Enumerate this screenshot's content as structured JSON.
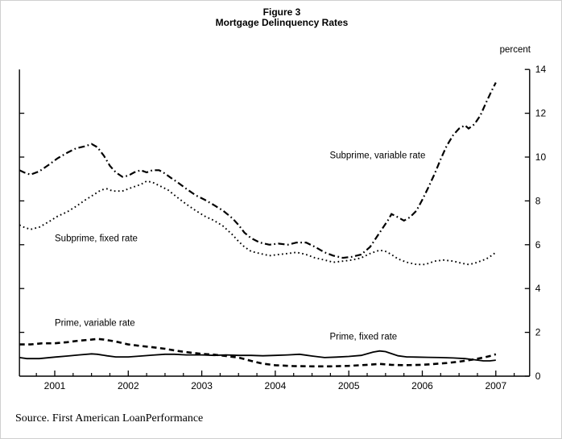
{
  "figure": {
    "title_line1": "Figure 3",
    "title_line2": "Mortgage Delinquency Rates",
    "unit_label": "percent",
    "source_note": "Source. First American LoanPerformance"
  },
  "chart_data": {
    "type": "line",
    "title": "Mortgage Delinquency Rates",
    "ylabel": "percent",
    "ylim": [
      0,
      14
    ],
    "yticks": [
      0,
      2,
      4,
      6,
      8,
      10,
      12,
      14
    ],
    "ytick_label_side": "right",
    "xlim": [
      2000.52,
      2007.46
    ],
    "xticks_years": [
      2001,
      2002,
      2003,
      2004,
      2005,
      2006,
      2007
    ],
    "xtick_minor_interval_years": 0.25,
    "grid": false,
    "legend_position": "inline-annotations",
    "colors": {
      "line": "#000000",
      "text": "#000000",
      "background": "#ffffff"
    },
    "series": [
      {
        "name": "Subprime, variable rate",
        "line_style": "dash-dot",
        "color": "#000000",
        "points": [
          [
            2000.52,
            9.4
          ],
          [
            2000.58,
            9.3
          ],
          [
            2000.67,
            9.2
          ],
          [
            2000.79,
            9.35
          ],
          [
            2000.92,
            9.65
          ],
          [
            2001.04,
            9.95
          ],
          [
            2001.17,
            10.2
          ],
          [
            2001.29,
            10.4
          ],
          [
            2001.42,
            10.5
          ],
          [
            2001.5,
            10.6
          ],
          [
            2001.58,
            10.45
          ],
          [
            2001.67,
            10.05
          ],
          [
            2001.75,
            9.6
          ],
          [
            2001.83,
            9.3
          ],
          [
            2001.92,
            9.1
          ],
          [
            2002.0,
            9.15
          ],
          [
            2002.08,
            9.3
          ],
          [
            2002.17,
            9.4
          ],
          [
            2002.25,
            9.3
          ],
          [
            2002.33,
            9.4
          ],
          [
            2002.42,
            9.4
          ],
          [
            2002.5,
            9.25
          ],
          [
            2002.58,
            9.05
          ],
          [
            2002.67,
            8.85
          ],
          [
            2002.79,
            8.55
          ],
          [
            2002.92,
            8.25
          ],
          [
            2003.04,
            8.05
          ],
          [
            2003.17,
            7.8
          ],
          [
            2003.29,
            7.55
          ],
          [
            2003.42,
            7.2
          ],
          [
            2003.5,
            6.9
          ],
          [
            2003.58,
            6.55
          ],
          [
            2003.67,
            6.3
          ],
          [
            2003.79,
            6.1
          ],
          [
            2003.92,
            6.0
          ],
          [
            2004.04,
            6.05
          ],
          [
            2004.17,
            6.0
          ],
          [
            2004.29,
            6.1
          ],
          [
            2004.42,
            6.1
          ],
          [
            2004.54,
            5.9
          ],
          [
            2004.67,
            5.65
          ],
          [
            2004.79,
            5.5
          ],
          [
            2004.92,
            5.4
          ],
          [
            2005.04,
            5.45
          ],
          [
            2005.17,
            5.55
          ],
          [
            2005.29,
            5.9
          ],
          [
            2005.42,
            6.55
          ],
          [
            2005.54,
            7.15
          ],
          [
            2005.58,
            7.4
          ],
          [
            2005.67,
            7.25
          ],
          [
            2005.75,
            7.1
          ],
          [
            2005.83,
            7.25
          ],
          [
            2005.92,
            7.55
          ],
          [
            2006.0,
            8.05
          ],
          [
            2006.08,
            8.6
          ],
          [
            2006.17,
            9.25
          ],
          [
            2006.25,
            9.9
          ],
          [
            2006.33,
            10.5
          ],
          [
            2006.42,
            11.0
          ],
          [
            2006.5,
            11.3
          ],
          [
            2006.58,
            11.45
          ],
          [
            2006.63,
            11.3
          ],
          [
            2006.71,
            11.5
          ],
          [
            2006.79,
            11.9
          ],
          [
            2006.87,
            12.5
          ],
          [
            2006.94,
            13.0
          ],
          [
            2007.0,
            13.4
          ]
        ]
      },
      {
        "name": "Subprime, fixed rate",
        "line_style": "dotted",
        "color": "#000000",
        "points": [
          [
            2000.52,
            6.9
          ],
          [
            2000.58,
            6.8
          ],
          [
            2000.67,
            6.7
          ],
          [
            2000.79,
            6.8
          ],
          [
            2000.92,
            7.05
          ],
          [
            2001.04,
            7.3
          ],
          [
            2001.17,
            7.5
          ],
          [
            2001.29,
            7.75
          ],
          [
            2001.42,
            8.05
          ],
          [
            2001.54,
            8.3
          ],
          [
            2001.63,
            8.5
          ],
          [
            2001.71,
            8.55
          ],
          [
            2001.79,
            8.45
          ],
          [
            2001.92,
            8.45
          ],
          [
            2002.04,
            8.6
          ],
          [
            2002.17,
            8.75
          ],
          [
            2002.25,
            8.9
          ],
          [
            2002.33,
            8.85
          ],
          [
            2002.42,
            8.7
          ],
          [
            2002.54,
            8.5
          ],
          [
            2002.67,
            8.15
          ],
          [
            2002.79,
            7.85
          ],
          [
            2002.92,
            7.55
          ],
          [
            2003.04,
            7.3
          ],
          [
            2003.17,
            7.1
          ],
          [
            2003.29,
            6.85
          ],
          [
            2003.42,
            6.45
          ],
          [
            2003.5,
            6.15
          ],
          [
            2003.58,
            5.9
          ],
          [
            2003.67,
            5.7
          ],
          [
            2003.79,
            5.6
          ],
          [
            2003.92,
            5.5
          ],
          [
            2004.04,
            5.55
          ],
          [
            2004.17,
            5.6
          ],
          [
            2004.29,
            5.65
          ],
          [
            2004.42,
            5.55
          ],
          [
            2004.54,
            5.4
          ],
          [
            2004.67,
            5.3
          ],
          [
            2004.79,
            5.2
          ],
          [
            2004.92,
            5.25
          ],
          [
            2005.04,
            5.3
          ],
          [
            2005.17,
            5.4
          ],
          [
            2005.29,
            5.6
          ],
          [
            2005.42,
            5.75
          ],
          [
            2005.5,
            5.7
          ],
          [
            2005.58,
            5.55
          ],
          [
            2005.67,
            5.35
          ],
          [
            2005.79,
            5.2
          ],
          [
            2005.92,
            5.1
          ],
          [
            2006.04,
            5.1
          ],
          [
            2006.17,
            5.25
          ],
          [
            2006.29,
            5.3
          ],
          [
            2006.42,
            5.25
          ],
          [
            2006.54,
            5.15
          ],
          [
            2006.63,
            5.1
          ],
          [
            2006.71,
            5.15
          ],
          [
            2006.79,
            5.25
          ],
          [
            2006.87,
            5.35
          ],
          [
            2006.94,
            5.5
          ],
          [
            2007.0,
            5.65
          ]
        ]
      },
      {
        "name": "Prime, variable rate",
        "line_style": "dashed",
        "color": "#000000",
        "points": [
          [
            2000.52,
            1.45
          ],
          [
            2000.67,
            1.45
          ],
          [
            2000.83,
            1.5
          ],
          [
            2001.0,
            1.5
          ],
          [
            2001.17,
            1.55
          ],
          [
            2001.33,
            1.62
          ],
          [
            2001.5,
            1.67
          ],
          [
            2001.58,
            1.7
          ],
          [
            2001.67,
            1.67
          ],
          [
            2001.83,
            1.58
          ],
          [
            2002.0,
            1.45
          ],
          [
            2002.17,
            1.38
          ],
          [
            2002.33,
            1.32
          ],
          [
            2002.5,
            1.25
          ],
          [
            2002.67,
            1.15
          ],
          [
            2002.83,
            1.08
          ],
          [
            2003.0,
            1.02
          ],
          [
            2003.17,
            0.98
          ],
          [
            2003.33,
            0.92
          ],
          [
            2003.5,
            0.85
          ],
          [
            2003.67,
            0.7
          ],
          [
            2003.83,
            0.57
          ],
          [
            2004.0,
            0.5
          ],
          [
            2004.25,
            0.46
          ],
          [
            2004.5,
            0.45
          ],
          [
            2004.75,
            0.45
          ],
          [
            2005.0,
            0.47
          ],
          [
            2005.25,
            0.52
          ],
          [
            2005.42,
            0.56
          ],
          [
            2005.58,
            0.52
          ],
          [
            2005.75,
            0.5
          ],
          [
            2006.0,
            0.52
          ],
          [
            2006.17,
            0.56
          ],
          [
            2006.33,
            0.6
          ],
          [
            2006.5,
            0.66
          ],
          [
            2006.67,
            0.75
          ],
          [
            2006.83,
            0.85
          ],
          [
            2006.92,
            0.92
          ],
          [
            2007.0,
            1.0
          ]
        ]
      },
      {
        "name": "Prime, fixed rate",
        "line_style": "solid",
        "color": "#000000",
        "points": [
          [
            2000.52,
            0.85
          ],
          [
            2000.62,
            0.8
          ],
          [
            2000.79,
            0.8
          ],
          [
            2001.0,
            0.87
          ],
          [
            2001.17,
            0.92
          ],
          [
            2001.33,
            0.97
          ],
          [
            2001.5,
            1.02
          ],
          [
            2001.58,
            1.0
          ],
          [
            2001.71,
            0.93
          ],
          [
            2001.83,
            0.88
          ],
          [
            2002.0,
            0.88
          ],
          [
            2002.17,
            0.92
          ],
          [
            2002.33,
            0.96
          ],
          [
            2002.5,
            1.0
          ],
          [
            2002.63,
            1.0
          ],
          [
            2002.79,
            0.97
          ],
          [
            2003.0,
            0.97
          ],
          [
            2003.17,
            0.95
          ],
          [
            2003.33,
            0.97
          ],
          [
            2003.5,
            0.95
          ],
          [
            2003.67,
            0.95
          ],
          [
            2003.83,
            0.93
          ],
          [
            2004.0,
            0.95
          ],
          [
            2004.17,
            0.97
          ],
          [
            2004.33,
            1.0
          ],
          [
            2004.5,
            0.92
          ],
          [
            2004.67,
            0.85
          ],
          [
            2004.83,
            0.87
          ],
          [
            2005.0,
            0.9
          ],
          [
            2005.17,
            0.95
          ],
          [
            2005.33,
            1.1
          ],
          [
            2005.42,
            1.15
          ],
          [
            2005.5,
            1.12
          ],
          [
            2005.58,
            1.03
          ],
          [
            2005.67,
            0.93
          ],
          [
            2005.79,
            0.88
          ],
          [
            2005.92,
            0.87
          ],
          [
            2006.08,
            0.86
          ],
          [
            2006.25,
            0.85
          ],
          [
            2006.42,
            0.83
          ],
          [
            2006.58,
            0.8
          ],
          [
            2006.71,
            0.75
          ],
          [
            2006.83,
            0.7
          ],
          [
            2006.92,
            0.7
          ],
          [
            2007.0,
            0.73
          ]
        ]
      }
    ],
    "annotations": [
      {
        "text": "Subprime, variable rate",
        "x": 2004.74,
        "y": 10.1
      },
      {
        "text": "Subprime, fixed rate",
        "x": 2001.0,
        "y": 6.3
      },
      {
        "text": "Prime, variable rate",
        "x": 2001.0,
        "y": 2.45
      },
      {
        "text": "Prime, fixed rate",
        "x": 2004.74,
        "y": 1.82
      }
    ]
  }
}
